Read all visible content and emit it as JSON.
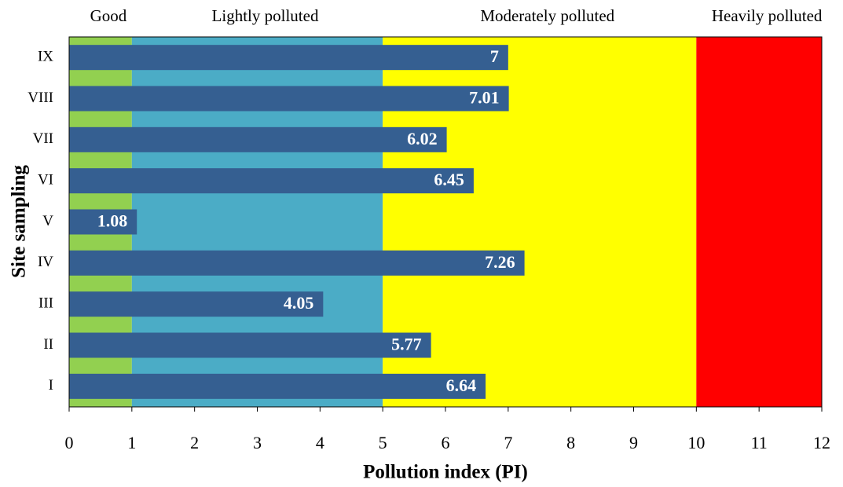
{
  "chart_data": {
    "type": "bar",
    "orientation": "horizontal",
    "xlabel": "Pollution index (PI)",
    "ylabel": "Site sampling",
    "categories": [
      "I",
      "II",
      "III",
      "IV",
      "V",
      "VI",
      "VII",
      "VIII",
      "IX"
    ],
    "values": [
      6.64,
      5.77,
      4.05,
      7.26,
      1.08,
      6.45,
      6.02,
      7.01,
      7
    ],
    "color": "#355f91",
    "xlim": [
      0,
      12
    ],
    "xticks": [
      0,
      1,
      2,
      3,
      4,
      5,
      6,
      7,
      8,
      9,
      10,
      11,
      12
    ],
    "bands": [
      {
        "label": "Good",
        "from": 0,
        "to": 1,
        "color": "#92d050"
      },
      {
        "label": "Lightly polluted",
        "from": 1,
        "to": 5,
        "color": "#4bacc6"
      },
      {
        "label": "Moderately polluted",
        "from": 5,
        "to": 10,
        "color": "#ffff00"
      },
      {
        "label": "Heavily polluted",
        "from": 10,
        "to": 12,
        "color": "#ff0000"
      }
    ]
  }
}
